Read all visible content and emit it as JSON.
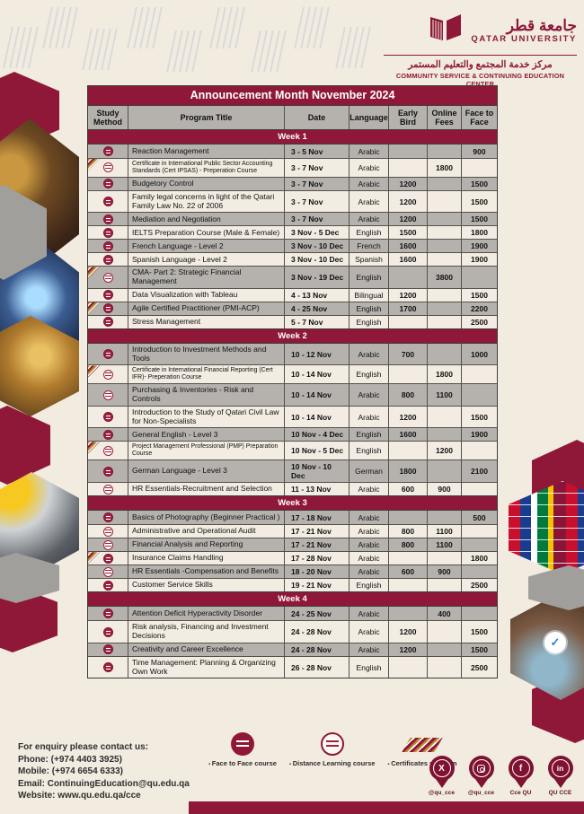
{
  "colors": {
    "maroon": "#8F1838",
    "row_gray": "#B5B2AE",
    "row_cream": "#F2ECE2",
    "gold_stripe": "#B98A2E"
  },
  "logo": {
    "university_ar": "جامعة قطر",
    "university_en": "QATAR UNIVERSITY",
    "center_ar": "مركز خدمة المجتمع والتعليم المستمر",
    "center_en": "COMMUNITY SERVICE & CONTINUING EDUCATION CENTER"
  },
  "table": {
    "title": "Announcement Month November 2024",
    "columns": [
      "Study Method",
      "Program Title",
      "Date",
      "Language",
      "Early Bird",
      "Online Fees",
      "Face to Face"
    ],
    "weeks": [
      {
        "label": "Week 1",
        "rows": [
          {
            "method": "face-to-face",
            "certificate": false,
            "small": false,
            "title": "Reaction Management",
            "date": "3 - 5 Nov",
            "language": "Arabic",
            "early_bird": "",
            "online_fees": "",
            "face_to_face": "900"
          },
          {
            "method": "distance",
            "certificate": true,
            "small": true,
            "title": "Certificate in International Public Sector Accounting Standards (Cert IPSAS) - Preperation Course",
            "date": "3 - 7 Nov",
            "language": "Arabic",
            "early_bird": "",
            "online_fees": "1800",
            "face_to_face": ""
          },
          {
            "method": "face-to-face",
            "certificate": false,
            "small": false,
            "title": "Budgetory Control",
            "date": "3 - 7 Nov",
            "language": "Arabic",
            "early_bird": "1200",
            "online_fees": "",
            "face_to_face": "1500"
          },
          {
            "method": "face-to-face",
            "certificate": false,
            "small": false,
            "title": "Family legal concerns in light of the Qatari Family Law No. 22 of 2006",
            "date": "3 - 7 Nov",
            "language": "Arabic",
            "early_bird": "1200",
            "online_fees": "",
            "face_to_face": "1500"
          },
          {
            "method": "face-to-face",
            "certificate": false,
            "small": false,
            "title": "Mediation and Negotiation",
            "date": "3 - 7 Nov",
            "language": "Arabic",
            "early_bird": "1200",
            "online_fees": "",
            "face_to_face": "1500"
          },
          {
            "method": "face-to-face",
            "certificate": false,
            "small": false,
            "title": "IELTS Preparation Course (Male & Female)",
            "date": "3 Nov - 5 Dec",
            "language": "English",
            "early_bird": "1500",
            "online_fees": "",
            "face_to_face": "1800"
          },
          {
            "method": "face-to-face",
            "certificate": false,
            "small": false,
            "title": "French Language - Level 2",
            "date": "3 Nov - 10 Dec",
            "language": "French",
            "early_bird": "1600",
            "online_fees": "",
            "face_to_face": "1900"
          },
          {
            "method": "face-to-face",
            "certificate": false,
            "small": false,
            "title": "Spanish Language - Level 2",
            "date": "3 Nov - 10 Dec",
            "language": "Spanish",
            "early_bird": "1600",
            "online_fees": "",
            "face_to_face": "1900"
          },
          {
            "method": "distance",
            "certificate": true,
            "small": false,
            "title": "CMA- Part 2: Strategic Financial Management",
            "date": "3 Nov - 19 Dec",
            "language": "English",
            "early_bird": "",
            "online_fees": "3800",
            "face_to_face": ""
          },
          {
            "method": "face-to-face",
            "certificate": false,
            "small": false,
            "title": "Data Visualization with Tableau",
            "date": "4 - 13 Nov",
            "language": "Bilingual",
            "early_bird": "1200",
            "online_fees": "",
            "face_to_face": "1500"
          },
          {
            "method": "face-to-face",
            "certificate": true,
            "small": false,
            "title": "Agile Certified Practitioner (PMI-ACP)",
            "date": "4 - 25 Nov",
            "language": "English",
            "early_bird": "1700",
            "online_fees": "",
            "face_to_face": "2200"
          },
          {
            "method": "face-to-face",
            "certificate": false,
            "small": false,
            "title": "Stress Management",
            "date": "5 - 7 Nov",
            "language": "English",
            "early_bird": "",
            "online_fees": "",
            "face_to_face": "2500"
          }
        ]
      },
      {
        "label": "Week 2",
        "rows": [
          {
            "method": "face-to-face",
            "certificate": false,
            "small": false,
            "title": "Introduction to Investment Methods and Tools",
            "date": "10 - 12 Nov",
            "language": "Arabic",
            "early_bird": "700",
            "online_fees": "",
            "face_to_face": "1000"
          },
          {
            "method": "distance",
            "certificate": true,
            "small": true,
            "title": "Certificate in International Financial Reporting (Cert IFR)- Preperation Course",
            "date": "10 - 14 Nov",
            "language": "English",
            "early_bird": "",
            "online_fees": "1800",
            "face_to_face": ""
          },
          {
            "method": "distance",
            "certificate": false,
            "small": false,
            "title": "Purchasing & Inventories - Risk and Controls",
            "date": "10 - 14 Nov",
            "language": "Arabic",
            "early_bird": "800",
            "online_fees": "1100",
            "face_to_face": ""
          },
          {
            "method": "face-to-face",
            "certificate": false,
            "small": false,
            "title": "Introduction to the Study of Qatari Civil Law for Non-Specialists",
            "date": "10 - 14 Nov",
            "language": "Arabic",
            "early_bird": "1200",
            "online_fees": "",
            "face_to_face": "1500"
          },
          {
            "method": "face-to-face",
            "certificate": false,
            "small": false,
            "title": "General English - Level 3",
            "date": "10 Nov - 4 Dec",
            "language": "English",
            "early_bird": "1600",
            "online_fees": "",
            "face_to_face": "1900"
          },
          {
            "method": "distance",
            "certificate": true,
            "small": true,
            "title": "Project Management Professional (PMP) Preparation Course",
            "date": "10 Nov - 5 Dec",
            "language": "English",
            "early_bird": "",
            "online_fees": "1200",
            "face_to_face": ""
          },
          {
            "method": "face-to-face",
            "certificate": false,
            "small": false,
            "title": "German Language - Level 3",
            "date": "10 Nov - 10 Dec",
            "language": "German",
            "early_bird": "1800",
            "online_fees": "",
            "face_to_face": "2100"
          },
          {
            "method": "distance",
            "certificate": false,
            "small": false,
            "title": "HR Essentials-Recruitment and Selection",
            "date": "11 - 13 Nov",
            "language": "Arabic",
            "early_bird": "600",
            "online_fees": "900",
            "face_to_face": ""
          }
        ]
      },
      {
        "label": "Week 3",
        "rows": [
          {
            "method": "face-to-face",
            "certificate": false,
            "small": false,
            "title": "Basics of Photography (Beginner Practical )",
            "date": "17 - 18 Nov",
            "language": "Arabic",
            "early_bird": "",
            "online_fees": "",
            "face_to_face": "500"
          },
          {
            "method": "distance",
            "certificate": false,
            "small": false,
            "title": "Administrative and Operational Audit",
            "date": "17 - 21 Nov",
            "language": "Arabic",
            "early_bird": "800",
            "online_fees": "1100",
            "face_to_face": ""
          },
          {
            "method": "distance",
            "certificate": false,
            "small": false,
            "title": "Financial Analysis and Reporting",
            "date": "17 - 21 Nov",
            "language": "Arabic",
            "early_bird": "800",
            "online_fees": "1100",
            "face_to_face": ""
          },
          {
            "method": "face-to-face",
            "certificate": true,
            "small": false,
            "title": "Insurance Claims Handling",
            "date": "17 - 28 Nov",
            "language": "Arabic",
            "early_bird": "",
            "online_fees": "",
            "face_to_face": "1800"
          },
          {
            "method": "distance",
            "certificate": false,
            "small": false,
            "title": "HR Essentials -Compensation and Benefits",
            "date": "18 - 20 Nov",
            "language": "Arabic",
            "early_bird": "600",
            "online_fees": "900",
            "face_to_face": ""
          },
          {
            "method": "face-to-face",
            "certificate": false,
            "small": false,
            "title": "Customer Service Skills",
            "date": "19 - 21 Nov",
            "language": "English",
            "early_bird": "",
            "online_fees": "",
            "face_to_face": "2500"
          }
        ]
      },
      {
        "label": "Week 4",
        "rows": [
          {
            "method": "face-to-face",
            "certificate": false,
            "small": false,
            "title": "Attention Deficit Hyperactivity Disorder",
            "date": "24 - 25 Nov",
            "language": "Arabic",
            "early_bird": "",
            "online_fees": "400",
            "face_to_face": ""
          },
          {
            "method": "face-to-face",
            "certificate": false,
            "small": false,
            "title": "Risk analysis, Financing and Investment Decisions",
            "date": "24 - 28 Nov",
            "language": "Arabic",
            "early_bird": "1200",
            "online_fees": "",
            "face_to_face": "1500"
          },
          {
            "method": "face-to-face",
            "certificate": false,
            "small": false,
            "title": "Creativity and Career Excellence",
            "date": "24 - 28 Nov",
            "language": "Arabic",
            "early_bird": "1200",
            "online_fees": "",
            "face_to_face": "1500"
          },
          {
            "method": "face-to-face",
            "certificate": false,
            "small": false,
            "title": "Time Management: Planning & Organizing Own Work",
            "date": "26 - 28 Nov",
            "language": "English",
            "early_bird": "",
            "online_fees": "",
            "face_to_face": "2500"
          }
        ]
      }
    ]
  },
  "footer": {
    "contact": {
      "heading": "For enquiry please contact us:",
      "phone": "Phone: (+974 4403 3925)",
      "mobile": "Mobile: (+974 6654 6333)",
      "email": "Email: ContinuingEducation@qu.edu.qa",
      "website": "Website: www.qu.edu.qa/cce"
    },
    "legend": [
      {
        "icon": "face-to-face-icon",
        "label": "Face to Face course"
      },
      {
        "icon": "distance-learning-icon",
        "label": "Distance Learning course"
      },
      {
        "icon": "certificate-flag-icon",
        "label": "Certificates program"
      }
    ],
    "social": [
      {
        "icon": "x-twitter-icon",
        "label": "@qu_cce"
      },
      {
        "icon": "instagram-icon",
        "label": "@qu_cce"
      },
      {
        "icon": "facebook-icon",
        "label": "Cce QU"
      },
      {
        "icon": "linkedin-icon",
        "label": "QU CCE"
      }
    ]
  }
}
